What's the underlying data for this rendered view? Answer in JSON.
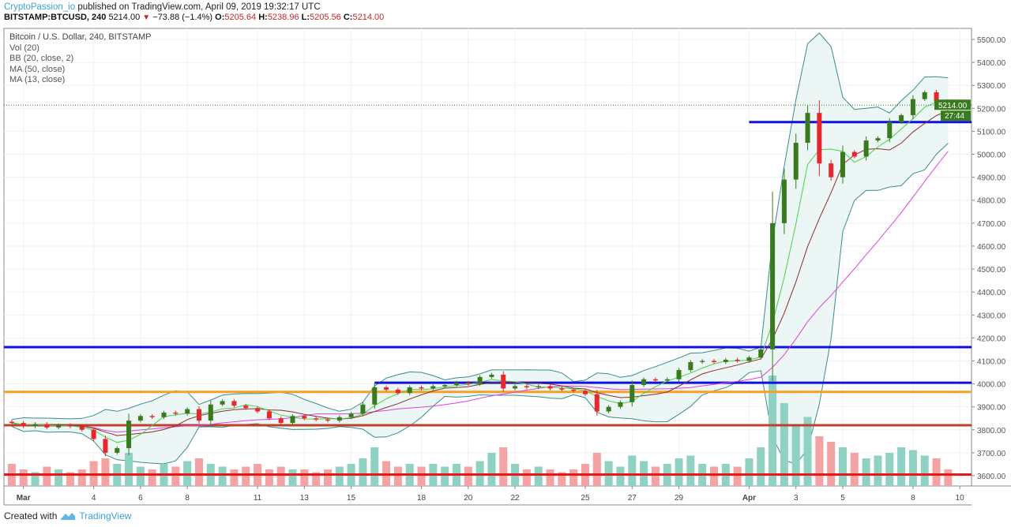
{
  "header": {
    "author": "CryptoPassion_io",
    "published_text": "published on TradingView.com, April 09, 2019 19:32:17 UTC",
    "symbol": "BITSTAMP:BTCUSD, 240",
    "last": "5214.00",
    "change": "−73.88 (−1.4%)",
    "o_label": "O:",
    "o": "5205.64",
    "h_label": "H:",
    "h": "5238.96",
    "l_label": "L:",
    "l": "5205.56",
    "c_label": "C:",
    "c": "5214.00"
  },
  "legend": [
    "Bitcoin / U.S. Dollar, 240, BITSTAMP",
    "Vol (20)",
    "BB (20, close, 2)",
    "MA (50, close)",
    "MA (13, close)"
  ],
  "footer": {
    "created_with": "Created with",
    "brand": "TradingView"
  },
  "colors": {
    "up": "#3a7a1e",
    "down": "#e8262b",
    "vol_up": "#8fd1c3",
    "vol_down": "#f3a3a3",
    "bb": "#3c8c8c",
    "bb_fill": "#e6f4f2",
    "ma50": "#e040e0",
    "ma13_green": "#4cd04c",
    "ma_brown": "#8a3030",
    "price_tag": "#3a7a1e",
    "author": "#3ba0d8"
  },
  "chart_data": {
    "type": "candlestick",
    "symbol": "BTCUSD",
    "interval": "240",
    "ylim": [
      3550,
      5560
    ],
    "yticks": [
      3600,
      3700,
      3800,
      3900,
      4000,
      4100,
      4200,
      4300,
      4400,
      4500,
      4600,
      4700,
      4800,
      4900,
      5000,
      5100,
      5200,
      5300,
      5400,
      5500
    ],
    "ytick_labels": [
      "3600.00",
      "3700.00",
      "3800.00",
      "3900.00",
      "4000.00",
      "4100.00",
      "4200.00",
      "4300.00",
      "4400.00",
      "4500.00",
      "4600.00",
      "4700.00",
      "4800.00",
      "4900.00",
      "5000.00",
      "5100.00",
      "5200.00",
      "5300.00",
      "5400.00",
      "5500.00"
    ],
    "xticks": [
      {
        "date": "2019-03-01",
        "label": "Mar"
      },
      {
        "date": "2019-03-04",
        "label": "4"
      },
      {
        "date": "2019-03-06",
        "label": "6"
      },
      {
        "date": "2019-03-08",
        "label": "8"
      },
      {
        "date": "2019-03-11",
        "label": "11"
      },
      {
        "date": "2019-03-13",
        "label": "13"
      },
      {
        "date": "2019-03-15",
        "label": "15"
      },
      {
        "date": "2019-03-18",
        "label": "18"
      },
      {
        "date": "2019-03-20",
        "label": "20"
      },
      {
        "date": "2019-03-22",
        "label": "22"
      },
      {
        "date": "2019-03-25",
        "label": "25"
      },
      {
        "date": "2019-03-27",
        "label": "27"
      },
      {
        "date": "2019-03-29",
        "label": "29"
      },
      {
        "date": "2019-04-01",
        "label": "Apr"
      },
      {
        "date": "2019-04-03",
        "label": "3"
      },
      {
        "date": "2019-04-05",
        "label": "5"
      },
      {
        "date": "2019-04-08",
        "label": "8"
      },
      {
        "date": "2019-04-10",
        "label": "10"
      }
    ],
    "xlim": [
      "2019-02-28T04:00",
      "2019-04-10T12:00"
    ],
    "series_start": "2019-02-28T12:00",
    "series_interval_hours": 12,
    "closes": [
      3830,
      3815,
      3825,
      3810,
      3820,
      3815,
      3800,
      3760,
      3700,
      3720,
      3840,
      3860,
      3855,
      3875,
      3870,
      3890,
      3840,
      3910,
      3925,
      3905,
      3895,
      3880,
      3850,
      3830,
      3860,
      3850,
      3845,
      3840,
      3855,
      3870,
      3910,
      3985,
      3975,
      3960,
      3985,
      3980,
      3990,
      3995,
      4005,
      4000,
      4030,
      4040,
      3980,
      3990,
      3985,
      3990,
      3980,
      3975,
      3970,
      3955,
      3880,
      3900,
      3920,
      3995,
      4020,
      4015,
      4020,
      4060,
      4095,
      4100,
      4095,
      4105,
      4100,
      4115,
      4150,
      4700,
      4890,
      5050,
      5180,
      4960,
      4900,
      5010,
      4990,
      5060,
      5070,
      5140,
      5170,
      5240,
      5270,
      5230,
      5214
    ],
    "volumes": [
      8,
      6,
      5,
      7,
      6,
      5,
      6,
      9,
      10,
      8,
      12,
      7,
      6,
      8,
      7,
      9,
      10,
      8,
      7,
      6,
      7,
      8,
      6,
      7,
      6,
      6,
      5,
      6,
      7,
      8,
      10,
      14,
      9,
      7,
      8,
      7,
      8,
      7,
      8,
      7,
      9,
      12,
      14,
      8,
      6,
      7,
      6,
      5,
      6,
      8,
      12,
      9,
      7,
      11,
      9,
      7,
      8,
      10,
      11,
      8,
      7,
      8,
      7,
      10,
      14,
      40,
      30,
      22,
      25,
      18,
      16,
      14,
      12,
      10,
      11,
      12,
      14,
      13,
      11,
      10,
      6
    ],
    "horizontal_lines": [
      {
        "price": 4160,
        "color": "#1010e0",
        "from": "2019-02-28T04:00"
      },
      {
        "price": 4005,
        "color": "#1010e0",
        "from": "2019-03-16T00:00"
      },
      {
        "price": 5140,
        "color": "#1010e0",
        "from": "2019-04-01T00:00"
      },
      {
        "price": 3965,
        "color": "#f5a020",
        "from": "2019-02-28T04:00"
      },
      {
        "price": 3820,
        "color": "#c0402a",
        "from": "2019-02-28T04:00"
      },
      {
        "price": 3605,
        "color": "#e81818",
        "from": "2019-02-28T04:00"
      }
    ],
    "last_price": 5214.0,
    "last_price_label": "5214.00",
    "countdown_label": "27:44",
    "indicators": [
      "Vol (20)",
      "BB (20, close, 2)",
      "MA (50, close)",
      "MA (13, close)"
    ]
  }
}
